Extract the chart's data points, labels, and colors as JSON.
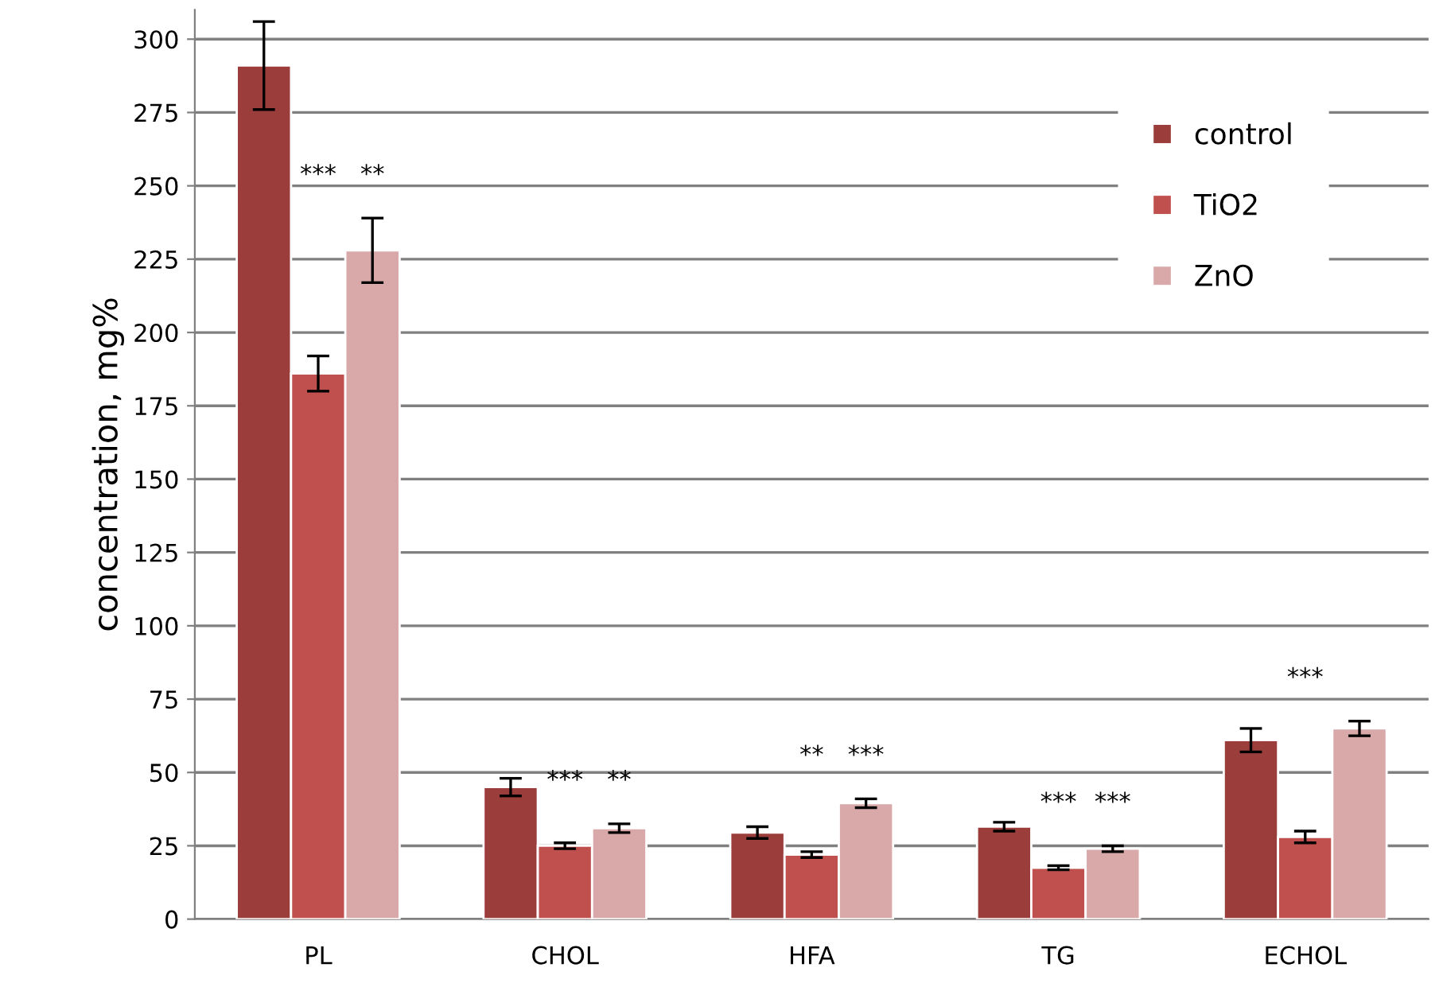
{
  "chart_data": {
    "type": "bar",
    "ylabel": "concentration, mg%",
    "categories": [
      "PL",
      "CHOL",
      "HFA",
      "TG",
      "ECHOL"
    ],
    "series": [
      {
        "name": "control",
        "color": "#9b3d3b",
        "values": [
          291,
          45,
          29.5,
          31.5,
          61
        ],
        "errors": [
          15,
          3,
          2,
          1.5,
          4
        ]
      },
      {
        "name": "TiO2",
        "color": "#c0504d",
        "values": [
          186,
          25,
          22,
          17.5,
          28
        ],
        "errors": [
          6,
          1,
          1,
          0.7,
          2
        ]
      },
      {
        "name": "ZnO",
        "color": "#d9a9a9",
        "values": [
          228,
          31,
          39.5,
          24,
          65
        ],
        "errors": [
          11,
          1.5,
          1.5,
          1,
          2.5
        ]
      }
    ],
    "ylim": [
      0,
      310
    ],
    "yticks": [
      0,
      25,
      50,
      75,
      100,
      125,
      150,
      175,
      200,
      225,
      250,
      275,
      300
    ],
    "grid": "y",
    "legend": "top right",
    "annotations": [
      "***",
      "**",
      "***",
      "**",
      "**",
      "***",
      "***",
      "***",
      "***"
    ]
  }
}
